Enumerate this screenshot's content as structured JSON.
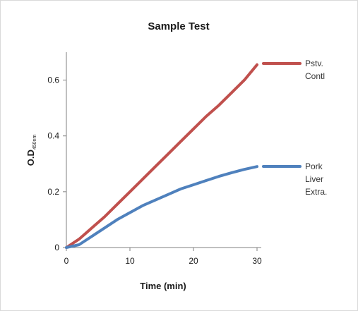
{
  "chart_data": {
    "type": "line",
    "title": "Sample Test",
    "xlabel": "Time (min)",
    "ylabel": {
      "main": "O.D",
      "subscript": "450nm"
    },
    "xlim": [
      0,
      30
    ],
    "ylim": [
      0,
      0.7
    ],
    "xticks": [
      0,
      10,
      20,
      30
    ],
    "xtick_labels": [
      "0",
      "10",
      "20",
      "30"
    ],
    "yticks": [
      0,
      0.2,
      0.4,
      0.6
    ],
    "ytick_labels": [
      "0",
      "0.2",
      "0.4",
      "0.6"
    ],
    "grid": false,
    "legend_placement": "right",
    "series": [
      {
        "name": "Pstv. Contl",
        "legend_lines": [
          "Pstv.",
          "Contl"
        ],
        "color": "#c0504d",
        "x": [
          0,
          2,
          4,
          6,
          8,
          10,
          12,
          14,
          16,
          18,
          20,
          22,
          24,
          26,
          28,
          30
        ],
        "values": [
          0,
          0.03,
          0.07,
          0.11,
          0.155,
          0.2,
          0.245,
          0.29,
          0.335,
          0.38,
          0.425,
          0.47,
          0.51,
          0.555,
          0.6,
          0.655
        ]
      },
      {
        "name": "Pork Liver Extra.",
        "legend_lines": [
          "Pork",
          "Liver",
          "Extra."
        ],
        "color": "#4f81bd",
        "x": [
          0,
          2,
          4,
          6,
          8,
          10,
          12,
          14,
          16,
          18,
          20,
          22,
          24,
          26,
          28,
          30
        ],
        "values": [
          0,
          0.01,
          0.04,
          0.07,
          0.1,
          0.125,
          0.15,
          0.17,
          0.19,
          0.21,
          0.225,
          0.24,
          0.255,
          0.268,
          0.28,
          0.29
        ]
      }
    ]
  }
}
